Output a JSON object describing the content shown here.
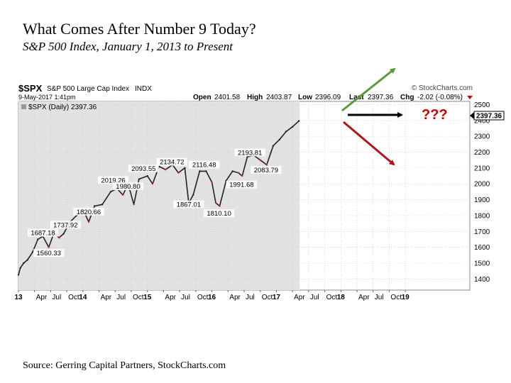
{
  "slide": {
    "title": "What Comes After Number 9 Today?",
    "subtitle": "S&P 500 Index, January 1, 2013 to Present",
    "source": "Source: Gerring Capital Partners, StockCharts.com"
  },
  "chart_header": {
    "symbol": "$SPX",
    "name": "S&P 500 Large Cap Index",
    "exchange": "INDX",
    "date": "9-May-2017 1:41pm",
    "watermark": "© StockCharts.com",
    "open_label": "Open",
    "open": "2401.58",
    "high_label": "High",
    "high": "2403.87",
    "low_label": "Low",
    "low": "2396.09",
    "last_label": "Last",
    "last": "2397.36",
    "chg_label": "Chg",
    "chg": "-2.02 (-0.08%)",
    "legend": "$SPX (Daily) 2397.36",
    "price_tag": "2397.36",
    "question": "???"
  },
  "chart_data": {
    "type": "line",
    "title": "",
    "series": [
      {
        "name": "$SPX (Daily)",
        "x": [
          2013.0,
          2013.03,
          2013.08,
          2013.14,
          2013.22,
          2013.3,
          2013.38,
          2013.47,
          2013.55,
          2013.63,
          2013.7,
          2013.8,
          2013.9,
          2014.0,
          2014.09,
          2014.18,
          2014.3,
          2014.43,
          2014.53,
          2014.62,
          2014.7,
          2014.79,
          2014.87,
          2015.0,
          2015.08,
          2015.18,
          2015.28,
          2015.39,
          2015.48,
          2015.58,
          2015.64,
          2015.71,
          2015.81,
          2015.91,
          2016.0,
          2016.06,
          2016.12,
          2016.22,
          2016.32,
          2016.41,
          2016.47,
          2016.55,
          2016.65,
          2016.75,
          2016.85,
          2016.95,
          2017.05,
          2017.15,
          2017.25,
          2017.35
        ],
        "values": [
          1426,
          1470,
          1500,
          1520,
          1570,
          1650,
          1669,
          1600,
          1690,
          1660,
          1685,
          1760,
          1800,
          1840,
          1760,
          1860,
          1870,
          1950,
          1970,
          1930,
          2000,
          1870,
          2030,
          2050,
          2000,
          2110,
          2090,
          2120,
          2070,
          2100,
          1880,
          1930,
          2080,
          2080,
          2010,
          1880,
          1860,
          2020,
          2080,
          2070,
          2050,
          2170,
          2180,
          2150,
          2120,
          2240,
          2280,
          2330,
          2360,
          2397
        ]
      }
    ],
    "annotations": [
      {
        "x": 2013.38,
        "y": 1687.18,
        "label": "1687.18"
      },
      {
        "x": 2013.47,
        "y": 1560.33,
        "label": "1560.33"
      },
      {
        "x": 2013.73,
        "y": 1737.92,
        "label": "1737.92"
      },
      {
        "x": 2014.09,
        "y": 1820.66,
        "label": "1820.66"
      },
      {
        "x": 2014.47,
        "y": 2019.26,
        "label": "2019.26"
      },
      {
        "x": 2014.7,
        "y": 1980.8,
        "label": "1980.80"
      },
      {
        "x": 2014.94,
        "y": 2093.55,
        "label": "2093.55"
      },
      {
        "x": 2015.38,
        "y": 2134.72,
        "label": "2134.72"
      },
      {
        "x": 2015.64,
        "y": 1867.01,
        "label": "1867.01"
      },
      {
        "x": 2015.88,
        "y": 2116.48,
        "label": "2116.48"
      },
      {
        "x": 2016.11,
        "y": 1810.1,
        "label": "1810.10"
      },
      {
        "x": 2016.46,
        "y": 1991.68,
        "label": "1991.68"
      },
      {
        "x": 2016.59,
        "y": 2193.81,
        "label": "2193.81"
      },
      {
        "x": 2016.84,
        "y": 2083.79,
        "label": "2083.79"
      }
    ],
    "y_ticks": [
      1400,
      1500,
      1600,
      1700,
      1800,
      1900,
      2000,
      2100,
      2200,
      2300,
      2400,
      2500
    ],
    "x_ticks": [
      {
        "x": 2013.0,
        "label": "13",
        "bold": true
      },
      {
        "x": 2013.25,
        "label": "Apr"
      },
      {
        "x": 2013.5,
        "label": "Jul"
      },
      {
        "x": 2013.75,
        "label": "Oct"
      },
      {
        "x": 2014.0,
        "label": "14",
        "bold": true
      },
      {
        "x": 2014.25,
        "label": "Apr"
      },
      {
        "x": 2014.5,
        "label": "Jul"
      },
      {
        "x": 2014.75,
        "label": "Oct"
      },
      {
        "x": 2015.0,
        "label": "15",
        "bold": true
      },
      {
        "x": 2015.25,
        "label": "Apr"
      },
      {
        "x": 2015.5,
        "label": "Jul"
      },
      {
        "x": 2015.75,
        "label": "Oct"
      },
      {
        "x": 2016.0,
        "label": "16",
        "bold": true
      },
      {
        "x": 2016.25,
        "label": "Apr"
      },
      {
        "x": 2016.5,
        "label": "Jul"
      },
      {
        "x": 2016.75,
        "label": "Oct"
      },
      {
        "x": 2017.0,
        "label": "17",
        "bold": true
      },
      {
        "x": 2017.25,
        "label": "Apr"
      },
      {
        "x": 2017.5,
        "label": "Jul"
      },
      {
        "x": 2017.75,
        "label": "Oct"
      },
      {
        "x": 2018.0,
        "label": "18",
        "bold": true
      },
      {
        "x": 2018.25,
        "label": "Apr"
      },
      {
        "x": 2018.5,
        "label": "Jul"
      },
      {
        "x": 2018.75,
        "label": "Oct"
      },
      {
        "x": 2019.0,
        "label": "19",
        "bold": true
      }
    ],
    "xlim": [
      2013.0,
      2020.0
    ],
    "ylim": [
      1330,
      2520
    ],
    "shaded_range": [
      2013.0,
      2017.36
    ],
    "grid": true,
    "colors": {
      "up_arrow": "#5a9a3a",
      "flat_arrow": "#000000",
      "down_arrow": "#b01515",
      "question": "#cc0000",
      "shade": "#e2e2e2",
      "line": "#222222",
      "down_day": "#cc2222"
    }
  }
}
